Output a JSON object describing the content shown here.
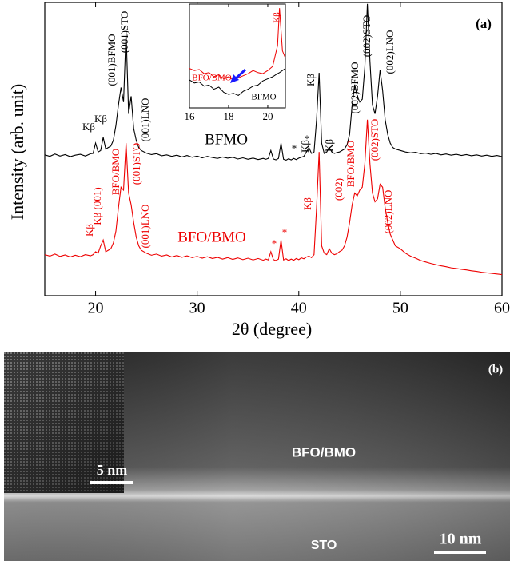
{
  "chart_data": [
    {
      "type": "line",
      "label": "(a)",
      "xlabel": "2θ (degree)",
      "ylabel": "Intensity (arb. unit)",
      "xlim": [
        15,
        60
      ],
      "xticks": [
        20,
        30,
        40,
        50,
        60
      ],
      "ylim": [
        0,
        100
      ],
      "x": [
        15,
        15.5,
        16,
        16.5,
        17,
        17.5,
        18,
        18.5,
        19,
        19.5,
        19.75,
        20,
        20.25,
        20.5,
        20.75,
        21,
        21.25,
        21.5,
        21.75,
        22,
        22.25,
        22.5,
        22.75,
        23,
        23.25,
        23.5,
        23.75,
        24,
        24.25,
        24.5,
        25,
        25.5,
        26,
        26.5,
        27,
        27.5,
        28,
        28.5,
        29,
        29.5,
        30,
        30.5,
        31,
        31.5,
        32,
        32.5,
        33,
        33.5,
        34,
        34.5,
        35,
        35.5,
        36,
        36.5,
        36.75,
        37,
        37.25,
        37.5,
        37.75,
        38,
        38.25,
        38.5,
        38.75,
        39,
        39.25,
        39.5,
        39.75,
        40,
        40.25,
        40.5,
        40.75,
        41,
        41.25,
        41.5,
        41.75,
        42,
        42.25,
        42.5,
        42.75,
        43,
        43.25,
        43.5,
        43.75,
        44,
        44.25,
        44.5,
        44.75,
        45,
        45.25,
        45.5,
        45.75,
        46,
        46.25,
        46.5,
        46.75,
        47,
        47.25,
        47.5,
        47.75,
        48,
        48.25,
        48.5,
        48.75,
        49,
        49.25,
        49.5,
        50,
        50.5,
        51,
        51.5,
        52,
        52.5,
        53,
        53.5,
        54,
        54.5,
        55,
        55.5,
        56,
        56.5,
        57,
        57.5,
        58,
        58.5,
        59,
        59.5,
        60
      ],
      "series": [
        {
          "name": "BFMO",
          "color": "#000000",
          "values": [
            48,
            47.5,
            48.3,
            47.6,
            48.1,
            47.4,
            47.9,
            48.2,
            47.6,
            48.4,
            48.5,
            52,
            49,
            49.5,
            54,
            50,
            50.5,
            51,
            53,
            58,
            65,
            71,
            66,
            90,
            62,
            68,
            57,
            53,
            50.5,
            49.5,
            48.6,
            48.1,
            48.4,
            47.7,
            48,
            47.5,
            47.9,
            47.3,
            47.8,
            47.2,
            47.6,
            47,
            47.5,
            47.1,
            46.8,
            47.3,
            46.9,
            47.2,
            46.6,
            47,
            46.5,
            46.9,
            46.4,
            46.8,
            46.5,
            46.8,
            49.5,
            46.6,
            46.3,
            46.8,
            52,
            46.5,
            46.2,
            46.7,
            46.3,
            46.8,
            46.4,
            46.9,
            47.2,
            47.5,
            49,
            50.5,
            48.5,
            49,
            60,
            76,
            52,
            48.5,
            49,
            50.5,
            49,
            48.5,
            48.8,
            49,
            49.5,
            50,
            51.5,
            55,
            65,
            72,
            68,
            66,
            67,
            78,
            99.5,
            80,
            65,
            62,
            68,
            77,
            70,
            60,
            55,
            52,
            50.5,
            50,
            49.5,
            49,
            48.7,
            48.9,
            48.4,
            48.6,
            48.2,
            48.5,
            48,
            48.3,
            47.9,
            48.2,
            47.8,
            48.1,
            47.7,
            48,
            47.6,
            47.9,
            47.5,
            47.8,
            47.4
          ]
        },
        {
          "name": "BFO/BMO",
          "color": "#ee0000",
          "values": [
            14,
            13.5,
            14.2,
            13.4,
            13.9,
            13.2,
            13.8,
            13.3,
            14,
            13.6,
            14,
            15,
            14.5,
            17,
            19,
            15,
            15.5,
            16,
            18,
            22,
            30,
            37,
            36,
            52,
            35,
            31,
            25,
            20,
            17,
            15.5,
            14.5,
            13.8,
            14.2,
            13.5,
            13.9,
            13.2,
            13.7,
            13.1,
            13.6,
            13,
            13.4,
            12.8,
            13.3,
            12.7,
            13.1,
            12.5,
            13,
            12.4,
            12.9,
            12.3,
            12.8,
            12.2,
            12.7,
            12.1,
            12.5,
            12.2,
            15,
            12.3,
            12,
            12.5,
            19,
            12.2,
            12.6,
            12,
            12.5,
            12.1,
            12.7,
            12.3,
            12.9,
            12.6,
            13.2,
            13.5,
            13,
            14,
            30,
            49,
            17,
            14.5,
            14,
            16,
            14.5,
            14,
            14.3,
            15,
            15.5,
            17,
            20,
            25,
            31,
            35,
            34,
            36,
            37,
            45,
            60,
            45,
            35,
            32,
            33,
            38,
            37,
            30,
            25,
            21,
            19,
            17,
            16,
            14.5,
            13.5,
            12.8,
            12,
            11.5,
            11,
            10.6,
            10.2,
            9.9,
            9.5,
            9.3,
            9,
            8.8,
            8.5,
            8.3,
            8,
            7.8,
            7.6,
            7.4,
            7.2
          ]
        }
      ],
      "annotations": [
        {
          "color": "#000000",
          "texts": [
            "Kβ",
            "Kβ",
            "(001)BFMO",
            "(001)STO",
            "(001)LNO",
            "*",
            "*",
            "Kβ",
            "Kβ",
            "Kβ",
            "(002)BFMO",
            "(002)STO",
            "(002)LNO"
          ]
        },
        {
          "color": "#ee0000",
          "texts": [
            "Kβ",
            "Kβ (001)",
            "BFO/BMO",
            "(001)STO",
            "(001)LNO",
            "*",
            "*",
            "Kβ",
            "(002)",
            "BFO/BMO",
            "(002)STO",
            "(002)LNO"
          ]
        }
      ]
    },
    {
      "type": "line",
      "xlim": [
        16,
        20.9
      ],
      "xticks": [
        16,
        18,
        20
      ],
      "ylim": [
        0,
        100
      ],
      "x": [
        16,
        16.25,
        16.5,
        16.75,
        17,
        17.25,
        17.5,
        17.75,
        18,
        18.25,
        18.5,
        18.75,
        19,
        19.25,
        19.5,
        19.75,
        20,
        20.25,
        20.5,
        20.6,
        20.75,
        20.9
      ],
      "series": [
        {
          "name": "BFMO",
          "color": "#000000",
          "values": [
            27,
            24,
            25,
            21,
            22,
            18,
            20,
            15,
            13,
            14,
            12,
            16,
            18,
            21,
            22,
            26,
            28,
            30,
            33,
            34,
            36,
            38
          ]
        },
        {
          "name": "BFO/BMO",
          "color": "#ee0000",
          "values": [
            38,
            36,
            37,
            33,
            34,
            30,
            32,
            28,
            30,
            27,
            29,
            31,
            33,
            36,
            34,
            33,
            36,
            40,
            60,
            96,
            55,
            48
          ]
        }
      ],
      "annotations": [
        "Kβ"
      ]
    }
  ],
  "image": {
    "label": "(b)",
    "regions": [
      "BFO/BMO",
      "STO"
    ],
    "scale_bars": [
      "5 nm",
      "10 nm"
    ]
  }
}
